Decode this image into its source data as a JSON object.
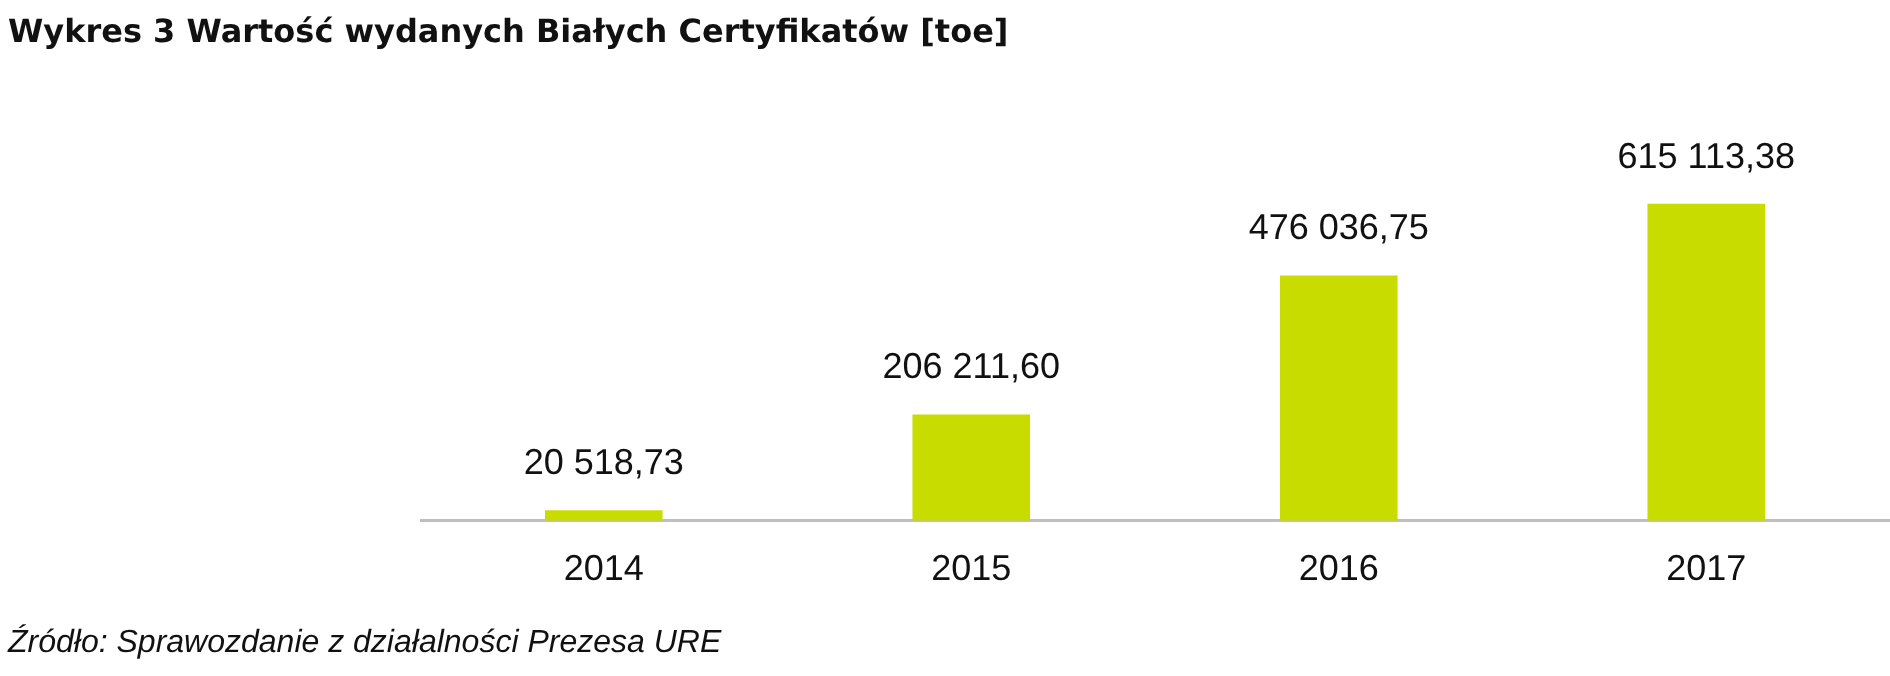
{
  "chart_data": {
    "type": "bar",
    "title": "Wykres 3 Wartość wydanych Białych Certyfikatów [toe]",
    "categories": [
      "2014",
      "2015",
      "2016",
      "2017"
    ],
    "values": [
      20518.73,
      206211.6,
      476036.75,
      615113.38
    ],
    "value_labels": [
      "20 518,73",
      "206 211,60",
      "476 036,75",
      "615 113,38"
    ],
    "color": "#c8dc00",
    "grid": false,
    "legend": false,
    "annotations": [
      "Źródło: Sprawozdanie z działalności Prezesa URE"
    ]
  }
}
